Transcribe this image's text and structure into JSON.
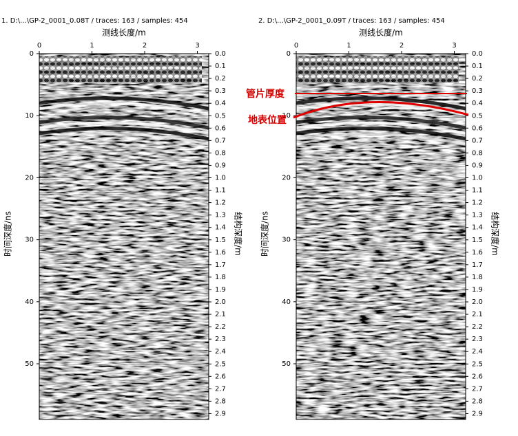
{
  "panels": [
    {
      "title": "1. D:\\...\\GP-2_0001_0.08T / traces: 163 / samples: 454",
      "x_label": "测线长度/m",
      "left_label": "时间深度/ns",
      "right_label": "结构深度/m",
      "top_ticks": [
        0,
        1,
        2,
        3
      ],
      "left_ticks": [
        0,
        10,
        20,
        30,
        40,
        50
      ],
      "right_ticks": [
        "0.0",
        "0.1",
        "0.2",
        "0.3",
        "0.4",
        "0.5",
        "0.6",
        "0.7",
        "0.8",
        "0.9",
        "1.0",
        "1.1",
        "1.2",
        "1.3",
        "1.4",
        "1.5",
        "1.6",
        "1.7",
        "1.8",
        "1.9",
        "2.0",
        "2.1",
        "2.2",
        "2.3",
        "2.4",
        "2.5",
        "2.6",
        "2.7",
        "2.8",
        "2.9"
      ]
    },
    {
      "title": "2. D:\\...\\GP-2_0001_0.09T / traces: 163 / samples: 454",
      "x_label": "测线长度/m",
      "left_label": "时间深度/ns",
      "right_label": "结构深度/m",
      "top_ticks": [
        0,
        1,
        2,
        3
      ],
      "left_ticks": [
        0,
        10,
        20,
        30,
        40,
        50
      ],
      "right_ticks": [
        "0.0",
        "0.1",
        "0.2",
        "0.3",
        "0.4",
        "0.5",
        "0.6",
        "0.7",
        "0.8",
        "0.9",
        "1.0",
        "1.1",
        "1.2",
        "1.3",
        "1.4",
        "1.5",
        "1.6",
        "1.7",
        "1.8",
        "1.9",
        "2.0",
        "2.1",
        "2.2",
        "2.3",
        "2.4",
        "2.5",
        "2.6",
        "2.7",
        "2.8",
        "2.9"
      ],
      "annotations": [
        "管片厚度",
        "地表位置"
      ]
    }
  ]
}
